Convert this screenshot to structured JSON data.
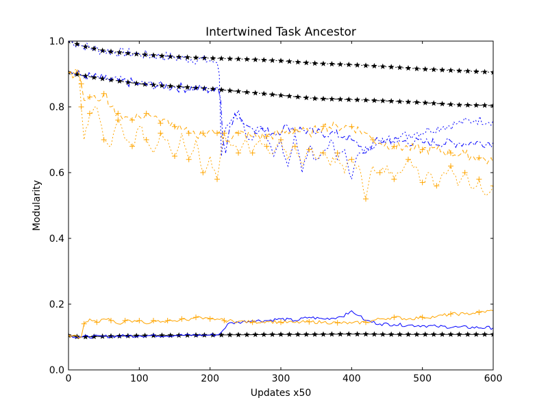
{
  "chart_data": {
    "type": "line",
    "title": "Intertwined Task Ancestor",
    "xlabel": "Updates x50",
    "ylabel": "Modularity",
    "xlim": [
      0,
      600
    ],
    "ylim": [
      0,
      1
    ],
    "xticks": [
      0,
      100,
      200,
      300,
      400,
      500,
      600
    ],
    "yticks": [
      0.0,
      0.2,
      0.4,
      0.6,
      0.8,
      1.0
    ],
    "xtick_labels": [
      "0",
      "100",
      "200",
      "300",
      "400",
      "500",
      "600"
    ],
    "ytick_labels": [
      "0.0",
      "0.2",
      "0.4",
      "0.6",
      "0.8",
      "1.0"
    ],
    "grid": false,
    "legend": "none",
    "series": [
      {
        "color": "#000000",
        "dash": "dotted",
        "marker": "star",
        "points": [
          [
            0,
            1.0
          ],
          [
            20,
            0.985
          ],
          [
            50,
            0.97
          ],
          [
            100,
            0.96
          ],
          [
            150,
            0.952
          ],
          [
            200,
            0.948
          ],
          [
            250,
            0.945
          ],
          [
            300,
            0.94
          ],
          [
            350,
            0.932
          ],
          [
            400,
            0.928
          ],
          [
            450,
            0.922
          ],
          [
            500,
            0.915
          ],
          [
            550,
            0.91
          ],
          [
            600,
            0.905
          ]
        ]
      },
      {
        "color": "#000000",
        "dash": "dashdot",
        "marker": "star",
        "points": [
          [
            0,
            0.905
          ],
          [
            20,
            0.895
          ],
          [
            50,
            0.885
          ],
          [
            100,
            0.87
          ],
          [
            150,
            0.862
          ],
          [
            200,
            0.855
          ],
          [
            250,
            0.845
          ],
          [
            300,
            0.835
          ],
          [
            350,
            0.825
          ],
          [
            400,
            0.822
          ],
          [
            450,
            0.818
          ],
          [
            500,
            0.813
          ],
          [
            550,
            0.806
          ],
          [
            600,
            0.804
          ]
        ]
      },
      {
        "color": "#000000",
        "dash": "solid",
        "marker": "star",
        "points": [
          [
            0,
            0.105
          ],
          [
            15,
            0.1
          ],
          [
            50,
            0.102
          ],
          [
            100,
            0.104
          ],
          [
            150,
            0.105
          ],
          [
            200,
            0.106
          ],
          [
            250,
            0.107
          ],
          [
            300,
            0.108
          ],
          [
            350,
            0.108
          ],
          [
            400,
            0.109
          ],
          [
            450,
            0.108
          ],
          [
            500,
            0.108
          ],
          [
            550,
            0.108
          ],
          [
            600,
            0.108
          ]
        ]
      },
      {
        "color": "#0000ff",
        "dash": "dotted",
        "marker": "none",
        "points": [
          [
            0,
            1.0
          ],
          [
            20,
            0.985
          ],
          [
            50,
            0.97
          ],
          [
            100,
            0.96
          ],
          [
            150,
            0.95
          ],
          [
            200,
            0.94
          ],
          [
            210,
            0.935
          ],
          [
            213,
            0.9
          ],
          [
            216,
            0.65
          ],
          [
            220,
            0.72
          ],
          [
            230,
            0.76
          ],
          [
            240,
            0.79
          ],
          [
            250,
            0.72
          ],
          [
            260,
            0.7
          ],
          [
            270,
            0.74
          ],
          [
            280,
            0.7
          ],
          [
            290,
            0.65
          ],
          [
            300,
            0.7
          ],
          [
            310,
            0.62
          ],
          [
            320,
            0.72
          ],
          [
            330,
            0.6
          ],
          [
            340,
            0.68
          ],
          [
            350,
            0.64
          ],
          [
            360,
            0.66
          ],
          [
            370,
            0.7
          ],
          [
            380,
            0.64
          ],
          [
            390,
            0.67
          ],
          [
            400,
            0.58
          ],
          [
            410,
            0.66
          ],
          [
            420,
            0.68
          ],
          [
            430,
            0.67
          ],
          [
            440,
            0.69
          ],
          [
            450,
            0.7
          ],
          [
            470,
            0.71
          ],
          [
            490,
            0.72
          ],
          [
            510,
            0.73
          ],
          [
            530,
            0.74
          ],
          [
            550,
            0.75
          ],
          [
            575,
            0.76
          ],
          [
            600,
            0.758
          ]
        ]
      },
      {
        "color": "#0000ff",
        "dash": "dashdot",
        "marker": "none",
        "points": [
          [
            0,
            0.905
          ],
          [
            20,
            0.895
          ],
          [
            50,
            0.885
          ],
          [
            100,
            0.87
          ],
          [
            150,
            0.86
          ],
          [
            200,
            0.852
          ],
          [
            212,
            0.85
          ],
          [
            215,
            0.82
          ],
          [
            218,
            0.7
          ],
          [
            222,
            0.66
          ],
          [
            228,
            0.74
          ],
          [
            235,
            0.78
          ],
          [
            245,
            0.76
          ],
          [
            255,
            0.74
          ],
          [
            270,
            0.73
          ],
          [
            290,
            0.72
          ],
          [
            310,
            0.74
          ],
          [
            330,
            0.73
          ],
          [
            350,
            0.72
          ],
          [
            370,
            0.72
          ],
          [
            390,
            0.71
          ],
          [
            400,
            0.7
          ],
          [
            410,
            0.68
          ],
          [
            420,
            0.66
          ],
          [
            430,
            0.69
          ],
          [
            450,
            0.7
          ],
          [
            470,
            0.695
          ],
          [
            500,
            0.692
          ],
          [
            550,
            0.69
          ],
          [
            600,
            0.692
          ]
        ]
      },
      {
        "color": "#0000ff",
        "dash": "solid",
        "marker": "none",
        "points": [
          [
            0,
            0.105
          ],
          [
            15,
            0.1
          ],
          [
            50,
            0.102
          ],
          [
            100,
            0.104
          ],
          [
            150,
            0.105
          ],
          [
            200,
            0.106
          ],
          [
            212,
            0.107
          ],
          [
            218,
            0.12
          ],
          [
            225,
            0.14
          ],
          [
            240,
            0.145
          ],
          [
            260,
            0.15
          ],
          [
            280,
            0.15
          ],
          [
            300,
            0.155
          ],
          [
            320,
            0.15
          ],
          [
            340,
            0.16
          ],
          [
            360,
            0.155
          ],
          [
            380,
            0.16
          ],
          [
            395,
            0.17
          ],
          [
            400,
            0.18
          ],
          [
            410,
            0.165
          ],
          [
            420,
            0.15
          ],
          [
            440,
            0.14
          ],
          [
            460,
            0.138
          ],
          [
            480,
            0.136
          ],
          [
            500,
            0.135
          ],
          [
            520,
            0.132
          ],
          [
            550,
            0.13
          ],
          [
            600,
            0.128
          ]
        ]
      },
      {
        "color": "#ffa500",
        "dash": "dotted",
        "marker": "plus",
        "points": [
          [
            0,
            0.905
          ],
          [
            15,
            0.9
          ],
          [
            18,
            0.8
          ],
          [
            22,
            0.7
          ],
          [
            30,
            0.78
          ],
          [
            40,
            0.8
          ],
          [
            50,
            0.7
          ],
          [
            60,
            0.68
          ],
          [
            70,
            0.76
          ],
          [
            80,
            0.7
          ],
          [
            90,
            0.68
          ],
          [
            100,
            0.74
          ],
          [
            110,
            0.7
          ],
          [
            120,
            0.66
          ],
          [
            130,
            0.72
          ],
          [
            140,
            0.7
          ],
          [
            150,
            0.65
          ],
          [
            160,
            0.72
          ],
          [
            170,
            0.64
          ],
          [
            180,
            0.7
          ],
          [
            190,
            0.6
          ],
          [
            200,
            0.65
          ],
          [
            210,
            0.58
          ],
          [
            215,
            0.66
          ],
          [
            220,
            0.72
          ],
          [
            230,
            0.68
          ],
          [
            240,
            0.66
          ],
          [
            250,
            0.7
          ],
          [
            260,
            0.66
          ],
          [
            270,
            0.7
          ],
          [
            280,
            0.68
          ],
          [
            290,
            0.66
          ],
          [
            300,
            0.7
          ],
          [
            310,
            0.64
          ],
          [
            320,
            0.68
          ],
          [
            330,
            0.62
          ],
          [
            340,
            0.67
          ],
          [
            350,
            0.64
          ],
          [
            360,
            0.66
          ],
          [
            370,
            0.62
          ],
          [
            380,
            0.66
          ],
          [
            390,
            0.6
          ],
          [
            400,
            0.64
          ],
          [
            410,
            0.62
          ],
          [
            420,
            0.52
          ],
          [
            430,
            0.62
          ],
          [
            440,
            0.6
          ],
          [
            450,
            0.62
          ],
          [
            460,
            0.58
          ],
          [
            470,
            0.6
          ],
          [
            480,
            0.64
          ],
          [
            490,
            0.62
          ],
          [
            500,
            0.57
          ],
          [
            510,
            0.6
          ],
          [
            520,
            0.56
          ],
          [
            530,
            0.6
          ],
          [
            540,
            0.62
          ],
          [
            550,
            0.56
          ],
          [
            560,
            0.6
          ],
          [
            570,
            0.55
          ],
          [
            580,
            0.58
          ],
          [
            590,
            0.53
          ],
          [
            600,
            0.56
          ]
        ]
      },
      {
        "color": "#ffa500",
        "dash": "dashed",
        "marker": "plus",
        "points": [
          [
            0,
            0.905
          ],
          [
            15,
            0.9
          ],
          [
            18,
            0.87
          ],
          [
            22,
            0.82
          ],
          [
            30,
            0.83
          ],
          [
            40,
            0.82
          ],
          [
            50,
            0.84
          ],
          [
            60,
            0.8
          ],
          [
            70,
            0.78
          ],
          [
            80,
            0.77
          ],
          [
            90,
            0.76
          ],
          [
            100,
            0.77
          ],
          [
            110,
            0.78
          ],
          [
            120,
            0.77
          ],
          [
            130,
            0.75
          ],
          [
            140,
            0.76
          ],
          [
            150,
            0.74
          ],
          [
            160,
            0.73
          ],
          [
            170,
            0.72
          ],
          [
            180,
            0.71
          ],
          [
            190,
            0.72
          ],
          [
            200,
            0.73
          ],
          [
            210,
            0.72
          ],
          [
            220,
            0.7
          ],
          [
            240,
            0.72
          ],
          [
            260,
            0.71
          ],
          [
            280,
            0.71
          ],
          [
            300,
            0.72
          ],
          [
            320,
            0.73
          ],
          [
            340,
            0.72
          ],
          [
            360,
            0.74
          ],
          [
            380,
            0.74
          ],
          [
            400,
            0.74
          ],
          [
            420,
            0.72
          ],
          [
            430,
            0.7
          ],
          [
            440,
            0.69
          ],
          [
            460,
            0.68
          ],
          [
            480,
            0.675
          ],
          [
            500,
            0.67
          ],
          [
            520,
            0.67
          ],
          [
            540,
            0.66
          ],
          [
            560,
            0.655
          ],
          [
            580,
            0.645
          ],
          [
            600,
            0.63
          ]
        ]
      },
      {
        "color": "#ffa500",
        "dash": "solid",
        "marker": "plus",
        "points": [
          [
            0,
            0.105
          ],
          [
            18,
            0.1
          ],
          [
            22,
            0.14
          ],
          [
            30,
            0.155
          ],
          [
            40,
            0.145
          ],
          [
            50,
            0.155
          ],
          [
            60,
            0.15
          ],
          [
            70,
            0.14
          ],
          [
            80,
            0.15
          ],
          [
            90,
            0.145
          ],
          [
            100,
            0.15
          ],
          [
            110,
            0.14
          ],
          [
            120,
            0.15
          ],
          [
            130,
            0.145
          ],
          [
            140,
            0.15
          ],
          [
            150,
            0.15
          ],
          [
            160,
            0.155
          ],
          [
            170,
            0.15
          ],
          [
            180,
            0.16
          ],
          [
            190,
            0.155
          ],
          [
            200,
            0.155
          ],
          [
            210,
            0.155
          ],
          [
            220,
            0.15
          ],
          [
            240,
            0.148
          ],
          [
            260,
            0.145
          ],
          [
            280,
            0.148
          ],
          [
            300,
            0.145
          ],
          [
            320,
            0.144
          ],
          [
            340,
            0.146
          ],
          [
            360,
            0.145
          ],
          [
            380,
            0.143
          ],
          [
            400,
            0.142
          ],
          [
            420,
            0.145
          ],
          [
            440,
            0.155
          ],
          [
            460,
            0.16
          ],
          [
            480,
            0.155
          ],
          [
            500,
            0.16
          ],
          [
            520,
            0.162
          ],
          [
            540,
            0.17
          ],
          [
            560,
            0.17
          ],
          [
            580,
            0.175
          ],
          [
            600,
            0.18
          ]
        ]
      }
    ]
  }
}
